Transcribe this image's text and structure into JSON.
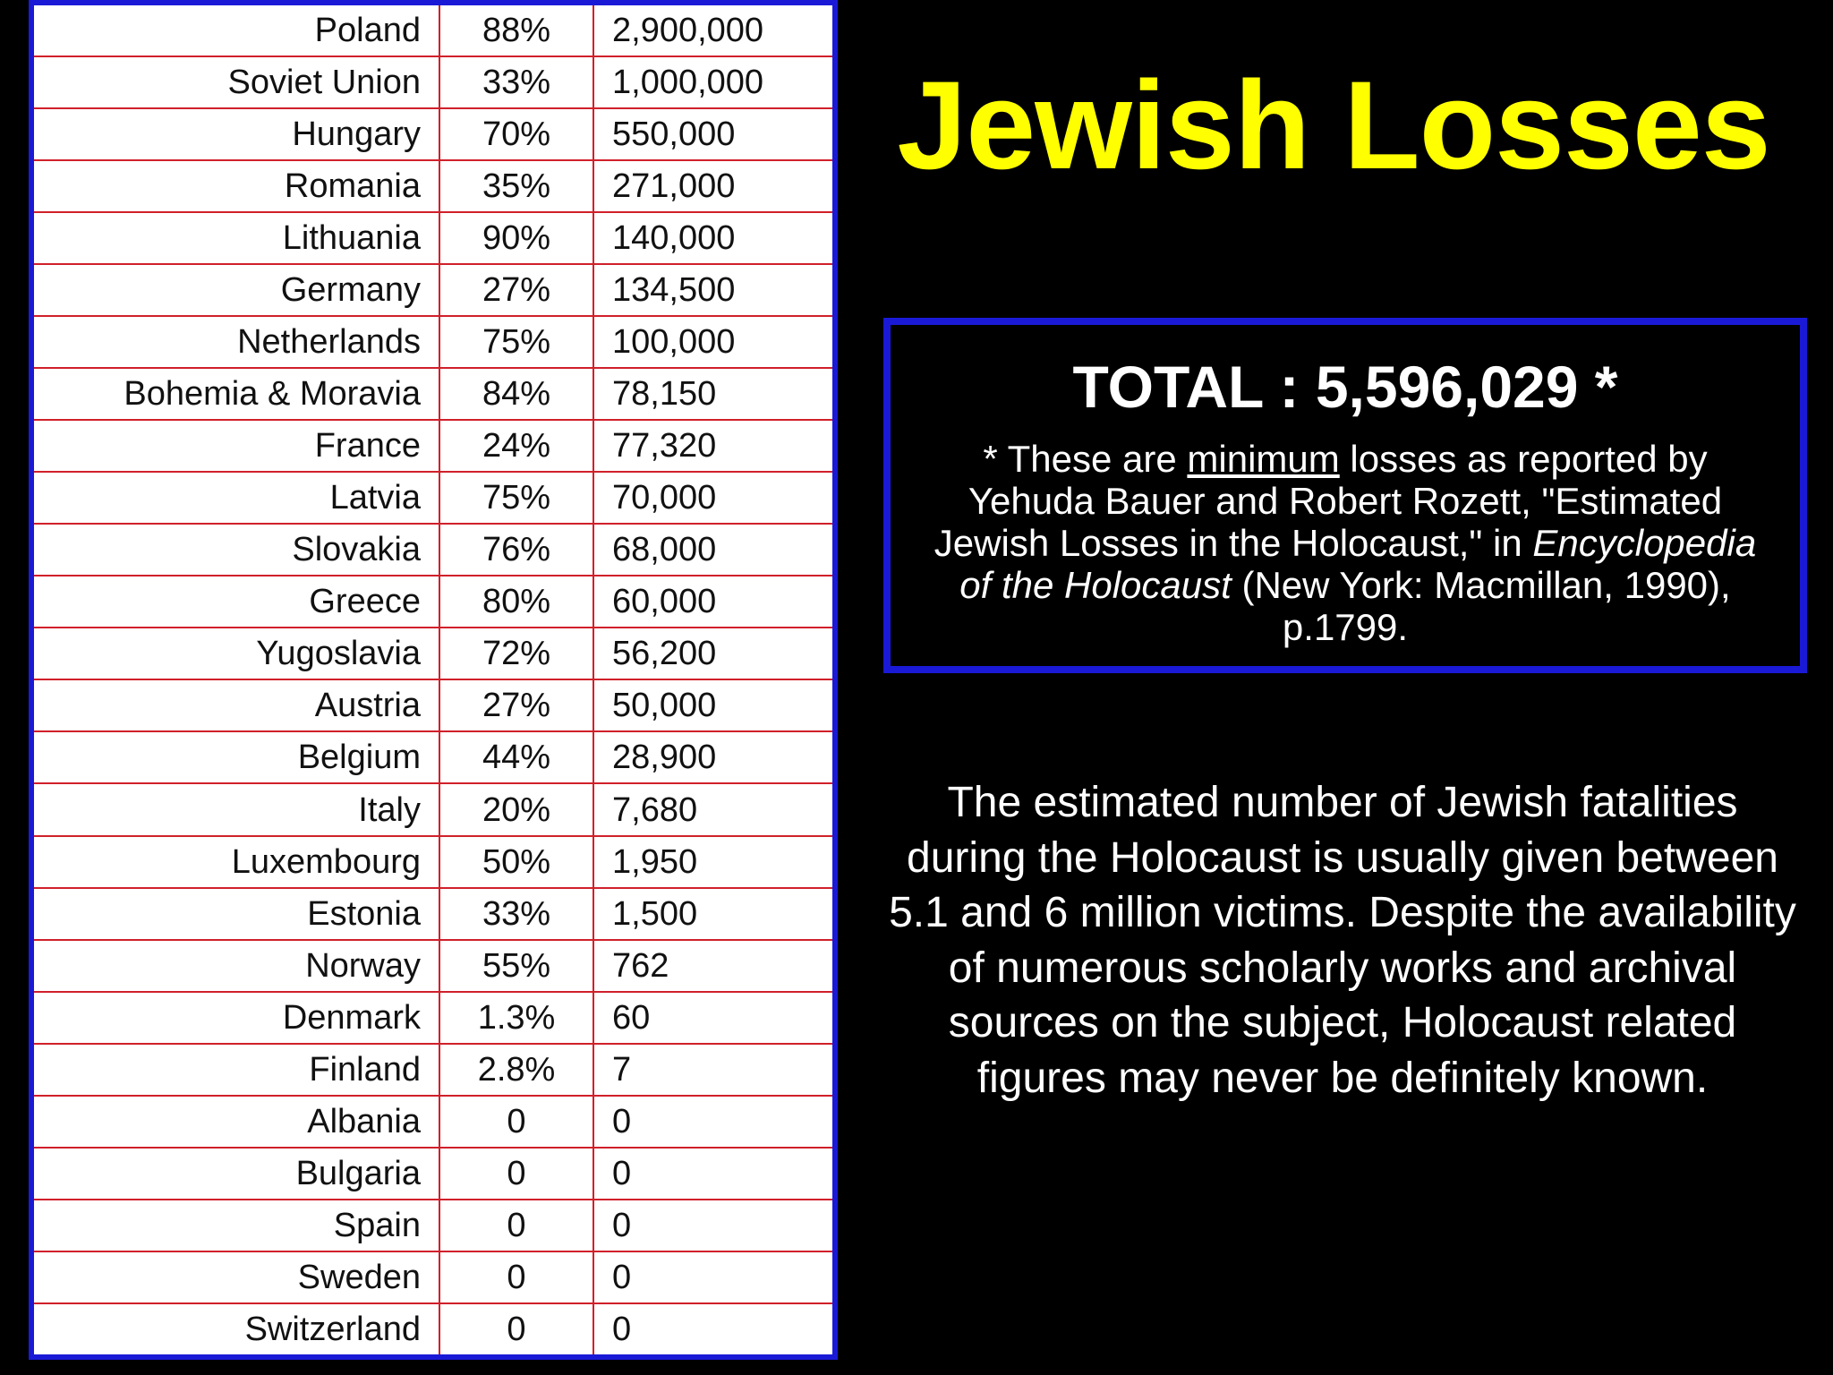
{
  "table": {
    "rows": [
      {
        "country": "Poland",
        "percent": "88%",
        "losses": "2,900,000"
      },
      {
        "country": "Soviet Union",
        "percent": "33%",
        "losses": "1,000,000"
      },
      {
        "country": "Hungary",
        "percent": "70%",
        "losses": "550,000"
      },
      {
        "country": "Romania",
        "percent": "35%",
        "losses": "271,000"
      },
      {
        "country": "Lithuania",
        "percent": "90%",
        "losses": "140,000"
      },
      {
        "country": "Germany",
        "percent": "27%",
        "losses": "134,500"
      },
      {
        "country": "Netherlands",
        "percent": "75%",
        "losses": "100,000"
      },
      {
        "country": "Bohemia & Moravia",
        "percent": "84%",
        "losses": "78,150"
      },
      {
        "country": "France",
        "percent": "24%",
        "losses": "77,320"
      },
      {
        "country": "Latvia",
        "percent": "75%",
        "losses": "70,000"
      },
      {
        "country": "Slovakia",
        "percent": "76%",
        "losses": "68,000"
      },
      {
        "country": "Greece",
        "percent": "80%",
        "losses": "60,000"
      },
      {
        "country": "Yugoslavia",
        "percent": "72%",
        "losses": "56,200"
      },
      {
        "country": "Austria",
        "percent": "27%",
        "losses": "50,000"
      },
      {
        "country": "Belgium",
        "percent": "44%",
        "losses": "28,900"
      },
      {
        "country": "Italy",
        "percent": "20%",
        "losses": "7,680"
      },
      {
        "country": "Luxembourg",
        "percent": "50%",
        "losses": "1,950"
      },
      {
        "country": "Estonia",
        "percent": "33%",
        "losses": "1,500"
      },
      {
        "country": "Norway",
        "percent": "55%",
        "losses": "762"
      },
      {
        "country": "Denmark",
        "percent": "1.3%",
        "losses": "60"
      },
      {
        "country": "Finland",
        "percent": "2.8%",
        "losses": "7"
      },
      {
        "country": "Albania",
        "percent": "0",
        "losses": "0"
      },
      {
        "country": "Bulgaria",
        "percent": "0",
        "losses": "0"
      },
      {
        "country": "Spain",
        "percent": "0",
        "losses": "0"
      },
      {
        "country": "Sweden",
        "percent": "0",
        "losses": "0"
      },
      {
        "country": "Switzerland",
        "percent": "0",
        "losses": "0"
      }
    ]
  },
  "title": "Jewish Losses",
  "total_box": {
    "total": "TOTAL : 5,596,029 *",
    "note_prefix": "* These are ",
    "note_underlined": "minimum",
    "note_mid": " losses as reported by Yehuda Bauer and Robert Rozett, \"Estimated Jewish Losses in the Holocaust,\" in ",
    "note_italic": "Encyclopedia of the Holocaust",
    "note_suffix": " (New York: Macmillan, 1990), p.1799."
  },
  "description": "The estimated number of Jewish fatalities during the Holocaust is usually given between 5.1 and 6 million victims. Despite the availability of numerous scholarly works and archival sources on the subject, Holocaust related figures may never be definitely known.",
  "colors": {
    "background": "#000000",
    "title": "#ffff00",
    "border_blue": "#1a1ad6",
    "grid_red": "#d0202a"
  }
}
